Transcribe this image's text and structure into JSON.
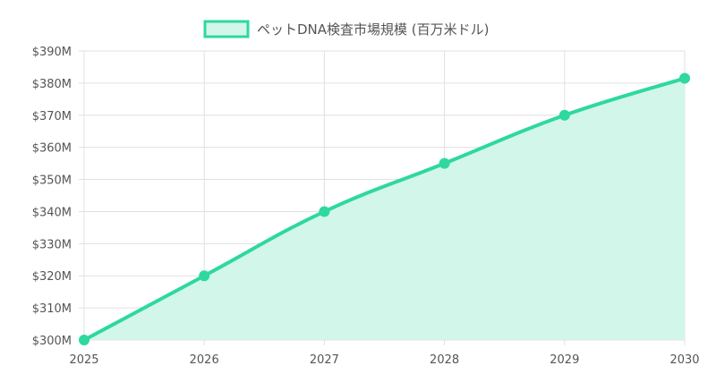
{
  "chart_data": {
    "type": "area",
    "legend": {
      "label": "ペットDNA検査市場規模 (百万米ドル)",
      "position": "top",
      "color": "#2ed8a0",
      "fill": "#d2f6ea"
    },
    "x": [
      "2025",
      "2026",
      "2027",
      "2028",
      "2029",
      "2030"
    ],
    "series": [
      {
        "name": "ペットDNA検査市場規模 (百万米ドル)",
        "values": [
          300,
          320,
          340,
          355,
          370,
          381.5
        ]
      }
    ],
    "ylim": [
      300,
      390
    ],
    "ytick_values": [
      300,
      310,
      320,
      330,
      340,
      350,
      360,
      370,
      380,
      390
    ],
    "ytick_labels": [
      "$300M",
      "$310M",
      "$320M",
      "$330M",
      "$340M",
      "$350M",
      "$360M",
      "$370M",
      "$380M",
      "$390M"
    ],
    "grid": true,
    "line_color": "#2ed8a0",
    "fill_color": "#d2f6ea",
    "grid_color": "#e0e0e0"
  }
}
